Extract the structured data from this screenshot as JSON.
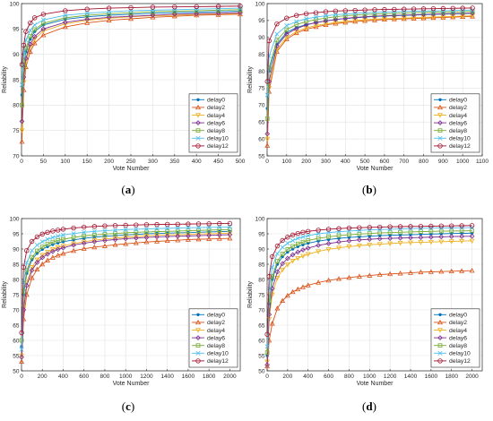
{
  "figure": {
    "panels": [
      {
        "label": "(a)",
        "label_pre": "(",
        "label_letter": "a",
        "label_post": ")"
      },
      {
        "label": "(b)",
        "label_pre": "(",
        "label_letter": "b",
        "label_post": ")"
      },
      {
        "label": "(c)",
        "label_pre": "(",
        "label_letter": "c",
        "label_post": ")"
      },
      {
        "label": "(d)",
        "label_pre": "(",
        "label_letter": "d",
        "label_post": ")"
      }
    ]
  },
  "chart_data": [
    {
      "type": "line",
      "panel": "(a)",
      "xlabel": "Vote Number",
      "ylabel": "Reliability",
      "xlim": [
        0,
        500
      ],
      "ylim": [
        70,
        100
      ],
      "xticks": [
        0,
        50,
        100,
        150,
        200,
        250,
        300,
        350,
        400,
        450,
        500
      ],
      "yticks": [
        70,
        75,
        80,
        85,
        90,
        95,
        100
      ],
      "grid": true,
      "legend": "lower-right",
      "x": [
        1,
        5,
        10,
        20,
        30,
        50,
        100,
        150,
        200,
        250,
        300,
        350,
        400,
        450,
        500
      ],
      "series": [
        {
          "name": "delay0",
          "color": "#0072BD",
          "marker": "dot",
          "values": [
            82,
            87.5,
            90.5,
            93,
            94.5,
            95.8,
            96.9,
            97.4,
            97.7,
            97.9,
            98.1,
            98.2,
            98.3,
            98.4,
            98.5
          ]
        },
        {
          "name": "delay2",
          "color": "#D95319",
          "marker": "triangle",
          "values": [
            72.8,
            83,
            87.5,
            90.5,
            92.2,
            93.8,
            95.4,
            96.2,
            96.7,
            97,
            97.3,
            97.5,
            97.7,
            97.8,
            97.9
          ]
        },
        {
          "name": "delay4",
          "color": "#EDB120",
          "marker": "triangle-down",
          "values": [
            75,
            84.5,
            88.5,
            91.5,
            93,
            94.6,
            96,
            96.7,
            97.1,
            97.4,
            97.6,
            97.7,
            97.9,
            98,
            98.1
          ]
        },
        {
          "name": "delay6",
          "color": "#7E2F8E",
          "marker": "diamond",
          "values": [
            76.8,
            85.5,
            89.2,
            92,
            93.5,
            95,
            96.3,
            96.9,
            97.3,
            97.5,
            97.7,
            97.9,
            98,
            98.1,
            98.2
          ]
        },
        {
          "name": "delay8",
          "color": "#77AC30",
          "marker": "square",
          "values": [
            80,
            87.8,
            91.2,
            93.6,
            94.9,
            96.1,
            97.2,
            97.7,
            98,
            98.2,
            98.4,
            98.5,
            98.6,
            98.7,
            98.8
          ]
        },
        {
          "name": "delay10",
          "color": "#4DBEEE",
          "marker": "x",
          "values": [
            84,
            90,
            92.8,
            94.7,
            95.8,
            96.8,
            97.7,
            98.1,
            98.4,
            98.6,
            98.7,
            98.8,
            98.9,
            99,
            99.1
          ]
        },
        {
          "name": "delay12",
          "color": "#A2142F",
          "marker": "circle",
          "values": [
            88,
            91.8,
            94.5,
            96.2,
            97.2,
            97.9,
            98.6,
            98.9,
            99.1,
            99.2,
            99.3,
            99.35,
            99.4,
            99.45,
            99.5
          ]
        }
      ]
    },
    {
      "type": "line",
      "panel": "(b)",
      "xlabel": "Vote Number",
      "ylabel": "Reliability",
      "xlim": [
        0,
        1100
      ],
      "ylim": [
        55,
        100
      ],
      "xticks": [
        0,
        100,
        200,
        300,
        400,
        500,
        600,
        700,
        800,
        900,
        1000,
        1100
      ],
      "yticks": [
        55,
        60,
        65,
        70,
        75,
        80,
        85,
        90,
        95,
        100
      ],
      "grid": true,
      "legend": "lower-right",
      "x": [
        1,
        10,
        50,
        100,
        150,
        200,
        250,
        300,
        350,
        400,
        450,
        500,
        550,
        600,
        650,
        700,
        750,
        800,
        850,
        900,
        950,
        1000,
        1050
      ],
      "series": [
        {
          "name": "delay0",
          "color": "#0072BD",
          "marker": "dot",
          "values": [
            69,
            80,
            88,
            91.5,
            92.9,
            93.8,
            94.4,
            94.9,
            95.3,
            95.6,
            95.8,
            96,
            96.2,
            96.3,
            96.4,
            96.5,
            96.6,
            96.7,
            96.8,
            96.9,
            96.95,
            97,
            97.1
          ]
        },
        {
          "name": "delay2",
          "color": "#D95319",
          "marker": "triangle",
          "values": [
            58,
            74,
            85.8,
            89.5,
            91.3,
            92.4,
            93.1,
            93.7,
            94.1,
            94.4,
            94.7,
            94.9,
            95.1,
            95.3,
            95.4,
            95.5,
            95.6,
            95.7,
            95.8,
            95.9,
            96,
            96.1,
            96.2
          ]
        },
        {
          "name": "delay4",
          "color": "#EDB120",
          "marker": "triangle-down",
          "values": [
            60,
            75,
            86.5,
            90,
            91.7,
            92.8,
            93.5,
            94,
            94.4,
            94.7,
            95,
            95.2,
            95.4,
            95.5,
            95.6,
            95.7,
            95.8,
            95.9,
            96,
            96.1,
            96.2,
            96.3,
            96.4
          ]
        },
        {
          "name": "delay6",
          "color": "#7E2F8E",
          "marker": "diamond",
          "values": [
            61.5,
            77,
            87.5,
            91,
            92.6,
            93.7,
            94.4,
            94.9,
            95.3,
            95.6,
            95.9,
            96.1,
            96.3,
            96.4,
            96.5,
            96.6,
            96.7,
            96.8,
            96.9,
            97,
            97.05,
            97.1,
            97.2
          ]
        },
        {
          "name": "delay8",
          "color": "#77AC30",
          "marker": "square",
          "values": [
            66,
            81,
            89.2,
            92.3,
            93.8,
            94.7,
            95.3,
            95.7,
            96.1,
            96.4,
            96.6,
            96.8,
            96.9,
            97,
            97.1,
            97.2,
            97.3,
            97.4,
            97.45,
            97.5,
            97.55,
            97.6,
            97.7
          ]
        },
        {
          "name": "delay10",
          "color": "#4DBEEE",
          "marker": "x",
          "values": [
            73,
            84.5,
            91,
            93.5,
            94.7,
            95.5,
            96,
            96.4,
            96.7,
            96.9,
            97.1,
            97.3,
            97.4,
            97.5,
            97.6,
            97.7,
            97.75,
            97.8,
            97.85,
            97.9,
            97.95,
            98,
            98.1
          ]
        },
        {
          "name": "delay12",
          "color": "#A2142F",
          "marker": "circle",
          "values": [
            77,
            89,
            94,
            95.7,
            96.5,
            97,
            97.3,
            97.6,
            97.8,
            97.9,
            98,
            98.1,
            98.2,
            98.25,
            98.3,
            98.35,
            98.4,
            98.45,
            98.5,
            98.55,
            98.6,
            98.65,
            98.7
          ]
        }
      ]
    },
    {
      "type": "line",
      "panel": "(c)",
      "xlabel": "Vote Number",
      "ylabel": "Reliability",
      "xlim": [
        0,
        2100
      ],
      "ylim": [
        50,
        100
      ],
      "xticks": [
        0,
        200,
        400,
        600,
        800,
        1000,
        1200,
        1400,
        1600,
        1800,
        2000
      ],
      "yticks": [
        50,
        55,
        60,
        65,
        70,
        75,
        80,
        85,
        90,
        95,
        100
      ],
      "grid": true,
      "legend": "lower-right",
      "x": [
        1,
        20,
        50,
        100,
        150,
        200,
        250,
        300,
        350,
        400,
        500,
        600,
        700,
        800,
        900,
        1000,
        1100,
        1200,
        1300,
        1400,
        1500,
        1600,
        1700,
        1800,
        1900,
        2000
      ],
      "series": [
        {
          "name": "delay0",
          "color": "#0072BD",
          "marker": "dot",
          "values": [
            58,
            75,
            82,
            86.5,
            88.6,
            89.9,
            90.8,
            91.5,
            92,
            92.4,
            93,
            93.5,
            93.9,
            94.2,
            94.4,
            94.6,
            94.8,
            95,
            95.1,
            95.2,
            95.3,
            95.4,
            95.5,
            95.6,
            95.7,
            95.8
          ]
        },
        {
          "name": "delay2",
          "color": "#D95319",
          "marker": "triangle",
          "values": [
            53,
            67,
            75,
            80.5,
            83.3,
            85,
            86.3,
            87.2,
            87.9,
            88.5,
            89.4,
            90.1,
            90.6,
            91,
            91.4,
            91.7,
            92,
            92.3,
            92.5,
            92.7,
            92.9,
            93.1,
            93.2,
            93.3,
            93.4,
            93.5
          ]
        },
        {
          "name": "delay4",
          "color": "#EDB120",
          "marker": "triangle-down",
          "values": [
            55,
            71,
            79,
            84,
            86.5,
            88,
            89,
            89.9,
            90.5,
            91,
            91.8,
            92.4,
            92.9,
            93.3,
            93.6,
            93.9,
            94.1,
            94.3,
            94.5,
            94.6,
            94.7,
            94.8,
            94.9,
            95,
            95.1,
            95.2
          ]
        },
        {
          "name": "delay6",
          "color": "#7E2F8E",
          "marker": "diamond",
          "values": [
            54.5,
            70,
            78,
            83,
            85.6,
            87.2,
            88.3,
            89.2,
            89.9,
            90.4,
            91.3,
            91.9,
            92.4,
            92.8,
            93.1,
            93.4,
            93.6,
            93.8,
            94,
            94.1,
            94.2,
            94.3,
            94.4,
            94.5,
            94.6,
            94.7
          ]
        },
        {
          "name": "delay8",
          "color": "#77AC30",
          "marker": "square",
          "values": [
            60,
            76,
            83,
            87.3,
            89.4,
            90.7,
            91.6,
            92.3,
            92.8,
            93.2,
            93.8,
            94.3,
            94.6,
            94.9,
            95.1,
            95.3,
            95.5,
            95.6,
            95.7,
            95.8,
            95.9,
            96,
            96.1,
            96.2,
            96.3,
            96.4
          ]
        },
        {
          "name": "delay10",
          "color": "#4DBEEE",
          "marker": "x",
          "values": [
            57,
            79,
            85.5,
            89.5,
            91.3,
            92.4,
            93.2,
            93.8,
            94.2,
            94.6,
            95.1,
            95.5,
            95.8,
            96,
            96.2,
            96.4,
            96.5,
            96.6,
            96.7,
            96.8,
            96.9,
            97,
            97.05,
            97.1,
            97.15,
            97.2
          ]
        },
        {
          "name": "delay12",
          "color": "#A2142F",
          "marker": "circle",
          "values": [
            62.5,
            84,
            89.5,
            92.5,
            94,
            94.9,
            95.5,
            95.9,
            96.2,
            96.5,
            96.9,
            97.2,
            97.4,
            97.6,
            97.7,
            97.8,
            97.9,
            98,
            98.05,
            98.1,
            98.15,
            98.2,
            98.25,
            98.3,
            98.35,
            98.4
          ]
        }
      ]
    },
    {
      "type": "line",
      "panel": "(d)",
      "xlabel": "Vote Number",
      "ylabel": "Reliability",
      "xlim": [
        0,
        2100
      ],
      "ylim": [
        50,
        100
      ],
      "xticks": [
        0,
        200,
        400,
        600,
        800,
        1000,
        1200,
        1400,
        1600,
        1800,
        2000
      ],
      "yticks": [
        50,
        55,
        60,
        65,
        70,
        75,
        80,
        85,
        90,
        95,
        100
      ],
      "grid": true,
      "legend": "lower-right",
      "x": [
        1,
        20,
        50,
        100,
        150,
        200,
        250,
        300,
        350,
        400,
        500,
        600,
        700,
        800,
        900,
        1000,
        1100,
        1200,
        1300,
        1400,
        1500,
        1600,
        1700,
        1800,
        1900,
        2000
      ],
      "series": [
        {
          "name": "delay0",
          "color": "#0072BD",
          "marker": "dot",
          "values": [
            55,
            72,
            80,
            85,
            87.5,
            89,
            90,
            90.8,
            91.4,
            91.9,
            92.6,
            93.1,
            93.5,
            93.8,
            94,
            94.2,
            94.4,
            94.5,
            94.6,
            94.7,
            94.8,
            94.9,
            95,
            95.1,
            95.15,
            95.2
          ]
        },
        {
          "name": "delay2",
          "color": "#D95319",
          "marker": "triangle",
          "values": [
            51.5,
            60,
            65.5,
            70.5,
            73,
            74.7,
            75.9,
            76.8,
            77.5,
            78.1,
            79,
            79.7,
            80.2,
            80.6,
            81,
            81.3,
            81.6,
            81.8,
            82,
            82.2,
            82.4,
            82.5,
            82.6,
            82.7,
            82.8,
            82.9
          ]
        },
        {
          "name": "delay4",
          "color": "#EDB120",
          "marker": "triangle-down",
          "values": [
            53,
            67,
            75,
            80.5,
            83.2,
            84.9,
            86.1,
            87,
            87.7,
            88.3,
            89.2,
            89.9,
            90.4,
            90.8,
            91.1,
            91.4,
            91.6,
            91.8,
            92,
            92.1,
            92.2,
            92.3,
            92.4,
            92.5,
            92.6,
            92.7
          ]
        },
        {
          "name": "delay6",
          "color": "#7E2F8E",
          "marker": "diamond",
          "values": [
            52,
            68.5,
            77,
            82.5,
            85.2,
            86.9,
            88.1,
            89,
            89.7,
            90.3,
            91.2,
            91.8,
            92.3,
            92.7,
            93,
            93.2,
            93.4,
            93.5,
            93.6,
            93.7,
            93.8,
            93.9,
            94,
            94.1,
            94.15,
            94.2
          ]
        },
        {
          "name": "delay8",
          "color": "#77AC30",
          "marker": "square",
          "values": [
            56,
            73,
            81,
            86,
            88.4,
            89.9,
            90.9,
            91.7,
            92.3,
            92.8,
            93.5,
            94,
            94.4,
            94.7,
            94.9,
            95.1,
            95.3,
            95.4,
            95.5,
            95.6,
            95.7,
            95.8,
            95.85,
            95.9,
            95.95,
            96
          ]
        },
        {
          "name": "delay10",
          "color": "#4DBEEE",
          "marker": "x",
          "values": [
            58,
            77,
            84,
            88.5,
            90.6,
            91.9,
            92.8,
            93.5,
            94,
            94.4,
            95,
            95.4,
            95.7,
            95.9,
            96.1,
            96.3,
            96.4,
            96.5,
            96.6,
            96.7,
            96.8,
            96.85,
            96.9,
            96.95,
            97,
            97.05
          ]
        },
        {
          "name": "delay12",
          "color": "#A2142F",
          "marker": "circle",
          "values": [
            62,
            81,
            87.5,
            91,
            92.8,
            93.9,
            94.6,
            95.1,
            95.5,
            95.8,
            96.2,
            96.5,
            96.7,
            96.9,
            97,
            97.1,
            97.2,
            97.3,
            97.35,
            97.4,
            97.45,
            97.5,
            97.55,
            97.6,
            97.65,
            97.7
          ]
        }
      ]
    }
  ]
}
